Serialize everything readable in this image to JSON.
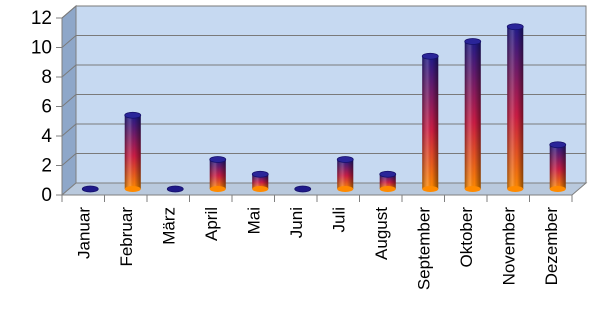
{
  "chart_data": {
    "type": "bar",
    "title": "",
    "xlabel": "",
    "ylabel": "",
    "categories": [
      "Januar",
      "Februar",
      "März",
      "April",
      "Mai",
      "Juni",
      "Juli",
      "August",
      "September",
      "Oktober",
      "November",
      "Dezember"
    ],
    "series": [
      {
        "values": [
          0,
          5,
          0,
          2,
          1,
          0,
          2,
          1,
          9,
          10,
          11,
          3
        ]
      }
    ],
    "ylim": [
      0,
      12
    ],
    "yticks": [
      "0",
      "2",
      "4",
      "6",
      "8",
      "10",
      "12"
    ],
    "grid": true,
    "legend": "none",
    "style": "3d-cylinder",
    "colors": {
      "plot_back": "#c6d9f1",
      "plot_side": "#8ea7c9",
      "floor": "#b9c9dd",
      "grid": "#7a7a7a",
      "bar_top": "#1f1a8a",
      "bar_mid": "#cc1c44",
      "bar_bottom": "#ff8a00"
    }
  }
}
